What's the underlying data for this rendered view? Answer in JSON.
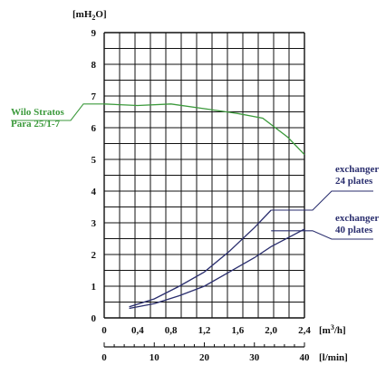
{
  "chart_data": {
    "type": "line",
    "y_unit_parts": [
      "[mH",
      "2",
      "O]"
    ],
    "x_unit_parts": [
      "[m",
      "3",
      "/h]"
    ],
    "x2_unit": "[l/min]",
    "y_ticks": [
      "0",
      "1",
      "2",
      "3",
      "4",
      "5",
      "6",
      "7",
      "8",
      "9"
    ],
    "x_ticks": [
      "0",
      "0,4",
      "0,8",
      "1,2",
      "1,6",
      "2,0",
      "2,4"
    ],
    "x2_ticks": [
      "0",
      "10",
      "20",
      "30",
      "40"
    ],
    "xlim": [
      0,
      2.4
    ],
    "ylim": [
      0,
      9
    ],
    "x2lim": [
      0,
      40
    ],
    "grid": true,
    "colors": {
      "pump": "#3c9a3c",
      "exchanger": "#2a2e6e",
      "axis": "#111111"
    },
    "series": [
      {
        "name_lines": [
          "Wilo Stratos",
          "Para 25/1-7"
        ],
        "color": "#3c9a3c",
        "x": [
          0.0,
          0.4,
          0.8,
          1.2,
          1.6,
          1.9,
          2.2,
          2.4
        ],
        "y": [
          6.75,
          6.7,
          6.75,
          6.6,
          6.45,
          6.3,
          5.7,
          5.15
        ]
      },
      {
        "name_lines": [
          "exchanger",
          "24 plates"
        ],
        "color": "#2a2e6e",
        "x": [
          0.3,
          0.6,
          0.9,
          1.2,
          1.5,
          1.8,
          2.0
        ],
        "y": [
          0.35,
          0.6,
          1.0,
          1.45,
          2.1,
          2.85,
          3.4
        ]
      },
      {
        "name_lines": [
          "exchanger",
          "40 plates"
        ],
        "color": "#2a2e6e",
        "x": [
          0.3,
          0.6,
          0.9,
          1.2,
          1.5,
          1.8,
          2.0,
          2.4
        ],
        "y": [
          0.3,
          0.45,
          0.7,
          1.0,
          1.45,
          1.9,
          2.25,
          2.8
        ]
      }
    ]
  }
}
